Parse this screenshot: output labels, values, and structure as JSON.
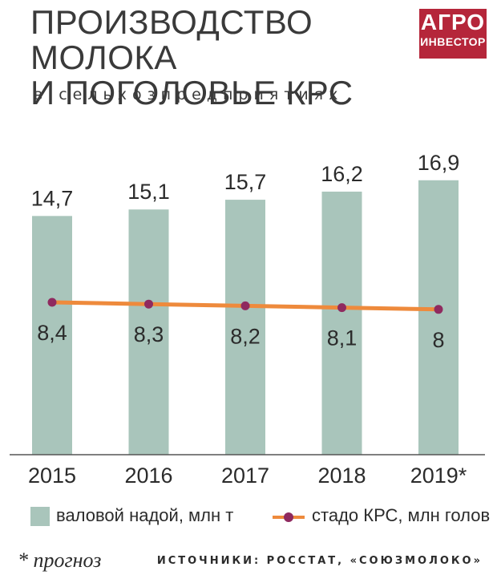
{
  "header": {
    "title_line1": "ПРОИЗВОДСТВО МОЛОКА",
    "title_line2": "И ПОГОЛОВЬЕ КРС",
    "subtitle": "в сельхозпредприятиях"
  },
  "logo": {
    "line1": "АГРО",
    "line2": "ИНВЕСТОР",
    "color": "#b5263a"
  },
  "chart_data": {
    "type": "bar",
    "title": "ПРОИЗВОДСТВО МОЛОКА И ПОГОЛОВЬЕ КРС",
    "subtitle": "в сельхозпредприятиях",
    "categories": [
      "2015",
      "2016",
      "2017",
      "2018",
      "2019*"
    ],
    "series": [
      {
        "name": "валовой надой, млн т",
        "type": "bar",
        "values": [
          14.7,
          15.1,
          15.7,
          16.2,
          16.9
        ],
        "labels": [
          "14,7",
          "15,1",
          "15,7",
          "16,2",
          "16,9"
        ],
        "color": "#a9c5bb"
      },
      {
        "name": "стадо КРС, млн голов",
        "type": "line",
        "values": [
          8.4,
          8.3,
          8.2,
          8.1,
          8
        ],
        "labels": [
          "8,4",
          "8,3",
          "8,2",
          "8,1",
          "8"
        ],
        "color": "#ee8a3c",
        "marker_color": "#8f2a5f"
      }
    ],
    "grid": false,
    "legend_position": "bottom"
  },
  "legend": {
    "bars_label": "валовой надой, млн т",
    "line_label": "стадо КРС, млн голов"
  },
  "footer": {
    "footnote": "* прогноз",
    "sources": "ИСТОЧНИКИ: РОССТАТ, «СОЮЗМОЛОКО»"
  }
}
